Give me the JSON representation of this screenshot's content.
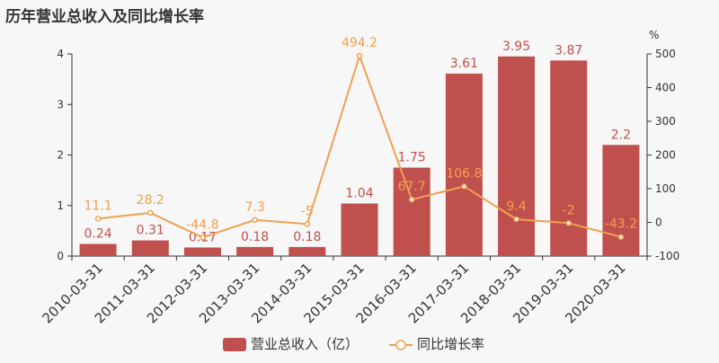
{
  "chart_data": {
    "type": "bar",
    "title": "历年营业总收入及同比增长率",
    "categories": [
      "2010-03-31",
      "2011-03-31",
      "2012-03-31",
      "2013-03-31",
      "2014-03-31",
      "2015-03-31",
      "2016-03-31",
      "2017-03-31",
      "2018-03-31",
      "2019-03-31",
      "2020-03-31"
    ],
    "series": [
      {
        "name": "营业总收入（亿）",
        "type": "bar",
        "axis": "left",
        "color": "#c0504d",
        "values": [
          0.24,
          0.31,
          0.17,
          0.18,
          0.18,
          1.04,
          1.75,
          3.61,
          3.95,
          3.87,
          2.2
        ]
      },
      {
        "name": "同比增长率",
        "type": "line",
        "axis": "right",
        "color": "#f0a050",
        "values": [
          11.1,
          28.2,
          -44.8,
          7.3,
          -5,
          494.2,
          67.7,
          106.8,
          9.4,
          -2,
          -43.2
        ]
      }
    ],
    "y_left": {
      "ylim": [
        0,
        4
      ],
      "ticks": [
        0,
        1,
        2,
        3,
        4
      ]
    },
    "y_right": {
      "ylim": [
        -100,
        500
      ],
      "ticks": [
        -100,
        0,
        100,
        200,
        300,
        400,
        500
      ],
      "unit": "%"
    },
    "grid": false,
    "legend": "bottom-center"
  }
}
